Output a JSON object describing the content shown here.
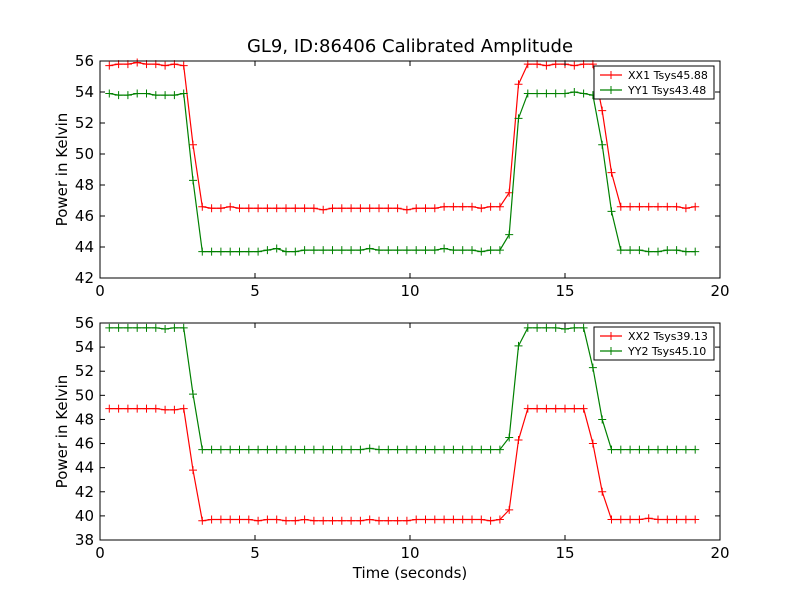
{
  "figure": {
    "title": "GL9, ID:86406 Calibrated Amplitude"
  },
  "chart_data": [
    {
      "type": "line",
      "title": "GL9, ID:86406 Calibrated Amplitude",
      "xlabel": "",
      "ylabel": "Power in Kelvin",
      "xlim": [
        0,
        20
      ],
      "ylim": [
        42,
        56
      ],
      "xticks": [
        "0",
        "5",
        "10",
        "15",
        "20"
      ],
      "yticks": [
        "42",
        "44",
        "46",
        "48",
        "50",
        "52",
        "54",
        "56"
      ],
      "legend_position": "top-right",
      "grid": false,
      "x": [
        0.3,
        0.6,
        0.9,
        1.2,
        1.5,
        1.8,
        2.1,
        2.4,
        2.7,
        3.0,
        3.3,
        3.6,
        3.9,
        4.2,
        4.5,
        4.8,
        5.1,
        5.4,
        5.7,
        6.0,
        6.3,
        6.6,
        6.9,
        7.2,
        7.5,
        7.8,
        8.1,
        8.4,
        8.7,
        9.0,
        9.3,
        9.6,
        9.9,
        10.2,
        10.5,
        10.8,
        11.1,
        11.4,
        11.7,
        12.0,
        12.3,
        12.6,
        12.9,
        13.2,
        13.5,
        13.8,
        14.1,
        14.4,
        14.7,
        15.0,
        15.3,
        15.6,
        15.9,
        16.2,
        16.5,
        16.8,
        17.1,
        17.4,
        17.7,
        18.0,
        18.3,
        18.6,
        18.9,
        19.2
      ],
      "series": [
        {
          "name": "XX1 Tsys45.88",
          "color": "#ff0000",
          "values": [
            55.7,
            55.8,
            55.8,
            55.9,
            55.8,
            55.8,
            55.7,
            55.8,
            55.7,
            50.6,
            46.6,
            46.5,
            46.5,
            46.6,
            46.5,
            46.5,
            46.5,
            46.5,
            46.5,
            46.5,
            46.5,
            46.5,
            46.5,
            46.4,
            46.5,
            46.5,
            46.5,
            46.5,
            46.5,
            46.5,
            46.5,
            46.5,
            46.4,
            46.5,
            46.5,
            46.5,
            46.6,
            46.6,
            46.6,
            46.6,
            46.5,
            46.6,
            46.6,
            47.5,
            54.5,
            55.8,
            55.8,
            55.7,
            55.8,
            55.8,
            55.7,
            55.8,
            55.8,
            52.8,
            48.8,
            46.6,
            46.6,
            46.6,
            46.6,
            46.6,
            46.6,
            46.6,
            46.5,
            46.6
          ]
        },
        {
          "name": "YY1 Tsys43.48",
          "color": "#008000",
          "values": [
            53.9,
            53.8,
            53.8,
            53.9,
            53.9,
            53.8,
            53.8,
            53.8,
            53.9,
            48.3,
            43.7,
            43.7,
            43.7,
            43.7,
            43.7,
            43.7,
            43.7,
            43.8,
            43.9,
            43.7,
            43.7,
            43.8,
            43.8,
            43.8,
            43.8,
            43.8,
            43.8,
            43.8,
            43.9,
            43.8,
            43.8,
            43.8,
            43.8,
            43.8,
            43.8,
            43.8,
            43.9,
            43.8,
            43.8,
            43.8,
            43.7,
            43.8,
            43.8,
            44.8,
            52.3,
            53.9,
            53.9,
            53.9,
            53.9,
            53.9,
            54.0,
            53.9,
            53.8,
            50.6,
            46.3,
            43.8,
            43.8,
            43.8,
            43.7,
            43.7,
            43.8,
            43.8,
            43.7,
            43.7
          ]
        }
      ]
    },
    {
      "type": "line",
      "title": "",
      "xlabel": "Time (seconds)",
      "ylabel": "Power in Kelvin",
      "xlim": [
        0,
        20
      ],
      "ylim": [
        38,
        56
      ],
      "xticks": [
        "0",
        "5",
        "10",
        "15",
        "20"
      ],
      "yticks": [
        "38",
        "40",
        "42",
        "44",
        "46",
        "48",
        "50",
        "52",
        "54",
        "56"
      ],
      "legend_position": "top-right",
      "grid": false,
      "x": [
        0.3,
        0.6,
        0.9,
        1.2,
        1.5,
        1.8,
        2.1,
        2.4,
        2.7,
        3.0,
        3.3,
        3.6,
        3.9,
        4.2,
        4.5,
        4.8,
        5.1,
        5.4,
        5.7,
        6.0,
        6.3,
        6.6,
        6.9,
        7.2,
        7.5,
        7.8,
        8.1,
        8.4,
        8.7,
        9.0,
        9.3,
        9.6,
        9.9,
        10.2,
        10.5,
        10.8,
        11.1,
        11.4,
        11.7,
        12.0,
        12.3,
        12.6,
        12.9,
        13.2,
        13.5,
        13.8,
        14.1,
        14.4,
        14.7,
        15.0,
        15.3,
        15.6,
        15.9,
        16.2,
        16.5,
        16.8,
        17.1,
        17.4,
        17.7,
        18.0,
        18.3,
        18.6,
        18.9,
        19.2
      ],
      "series": [
        {
          "name": "XX2 Tsys39.13",
          "color": "#ff0000",
          "values": [
            48.9,
            48.9,
            48.9,
            48.9,
            48.9,
            48.9,
            48.8,
            48.8,
            48.9,
            43.8,
            39.6,
            39.7,
            39.7,
            39.7,
            39.7,
            39.7,
            39.6,
            39.7,
            39.7,
            39.6,
            39.6,
            39.7,
            39.6,
            39.6,
            39.6,
            39.6,
            39.6,
            39.6,
            39.7,
            39.6,
            39.6,
            39.6,
            39.6,
            39.7,
            39.7,
            39.7,
            39.7,
            39.7,
            39.7,
            39.7,
            39.7,
            39.6,
            39.7,
            40.5,
            46.3,
            48.9,
            48.9,
            48.9,
            48.9,
            48.9,
            48.9,
            48.9,
            46.0,
            42.0,
            39.7,
            39.7,
            39.7,
            39.7,
            39.8,
            39.7,
            39.7,
            39.7,
            39.7,
            39.7
          ]
        },
        {
          "name": "YY2 Tsys45.10",
          "color": "#008000",
          "values": [
            55.6,
            55.6,
            55.6,
            55.6,
            55.6,
            55.6,
            55.5,
            55.6,
            55.6,
            50.1,
            45.5,
            45.5,
            45.5,
            45.5,
            45.5,
            45.5,
            45.5,
            45.5,
            45.5,
            45.5,
            45.5,
            45.5,
            45.5,
            45.5,
            45.5,
            45.5,
            45.5,
            45.5,
            45.6,
            45.5,
            45.5,
            45.5,
            45.5,
            45.5,
            45.5,
            45.5,
            45.5,
            45.5,
            45.5,
            45.5,
            45.5,
            45.5,
            45.5,
            46.5,
            54.1,
            55.6,
            55.6,
            55.6,
            55.6,
            55.5,
            55.6,
            55.6,
            52.3,
            48.0,
            45.5,
            45.5,
            45.5,
            45.5,
            45.5,
            45.5,
            45.5,
            45.5,
            45.5,
            45.5
          ]
        }
      ]
    }
  ]
}
